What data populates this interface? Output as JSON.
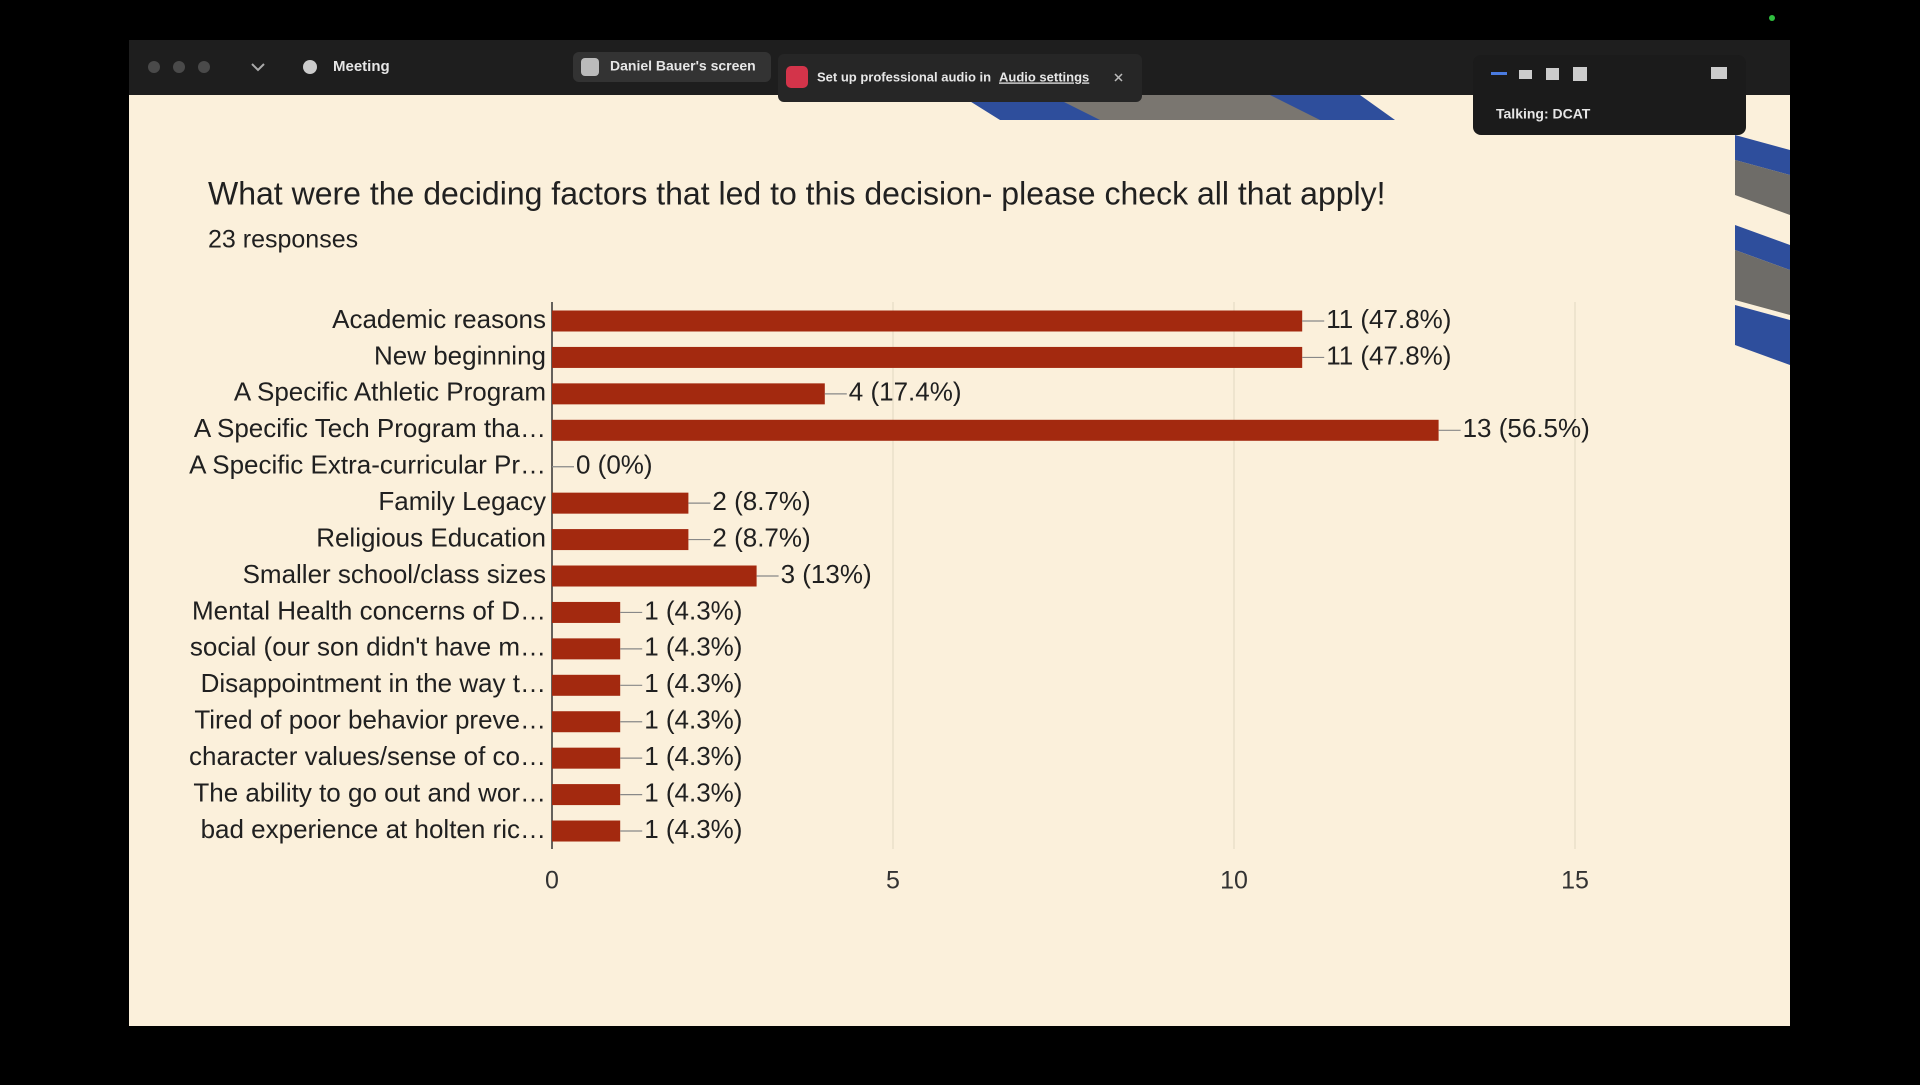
{
  "window": {
    "meeting": "Meeting",
    "share_label": "Daniel Bauer's screen",
    "notice_text": "Set up professional audio in",
    "notice_link": "Audio settings",
    "talking": "Talking: DCAT"
  },
  "chart_data": {
    "type": "bar",
    "orientation": "horizontal",
    "title": "What were the deciding factors that led to this decision- please check all that apply!",
    "subtitle": "23 responses",
    "categories": [
      "Academic reasons",
      "New beginning",
      "A Specific Athletic Program",
      "A Specific Tech Program tha…",
      "A Specific Extra-curricular Pr…",
      "Family Legacy",
      "Religious Education",
      "Smaller school/class sizes",
      "Mental Health concerns of D…",
      "social (our son didn't have m…",
      "Disappointment in the way t…",
      "Tired of poor behavior preve…",
      "character values/sense of co…",
      "The ability to go out and wor…",
      "bad experience at holten ric…"
    ],
    "values": [
      11,
      11,
      4,
      13,
      0,
      2,
      2,
      3,
      1,
      1,
      1,
      1,
      1,
      1,
      1
    ],
    "value_labels": [
      "11 (47.8%)",
      "11 (47.8%)",
      "4 (17.4%)",
      "13 (56.5%)",
      "0 (0%)",
      "2 (8.7%)",
      "2 (8.7%)",
      "3 (13%)",
      "1 (4.3%)",
      "1 (4.3%)",
      "1 (4.3%)",
      "1 (4.3%)",
      "1 (4.3%)",
      "1 (4.3%)",
      "1 (4.3%)"
    ],
    "color": "#a3290f",
    "xlim": [
      0,
      15
    ],
    "xticks": [
      0,
      5,
      10,
      15
    ],
    "grid": true
  }
}
